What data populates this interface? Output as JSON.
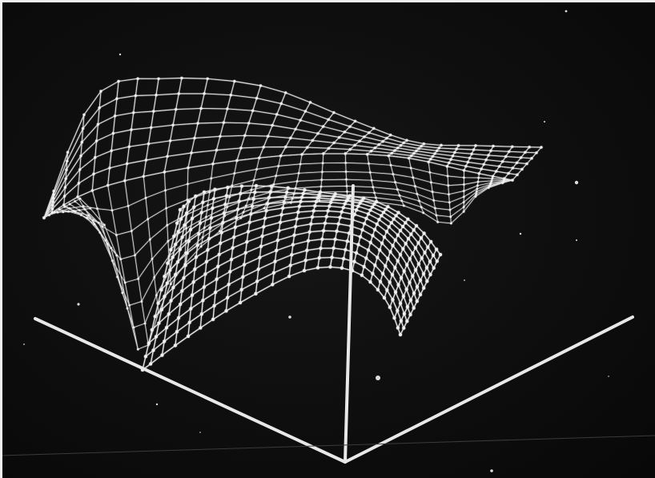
{
  "scene": {
    "subject": "wireframe-surface-photograph",
    "background_color": "#0c0c0c",
    "line_color": "#e6e6e6",
    "axis_color": "#e8e8e8"
  }
}
